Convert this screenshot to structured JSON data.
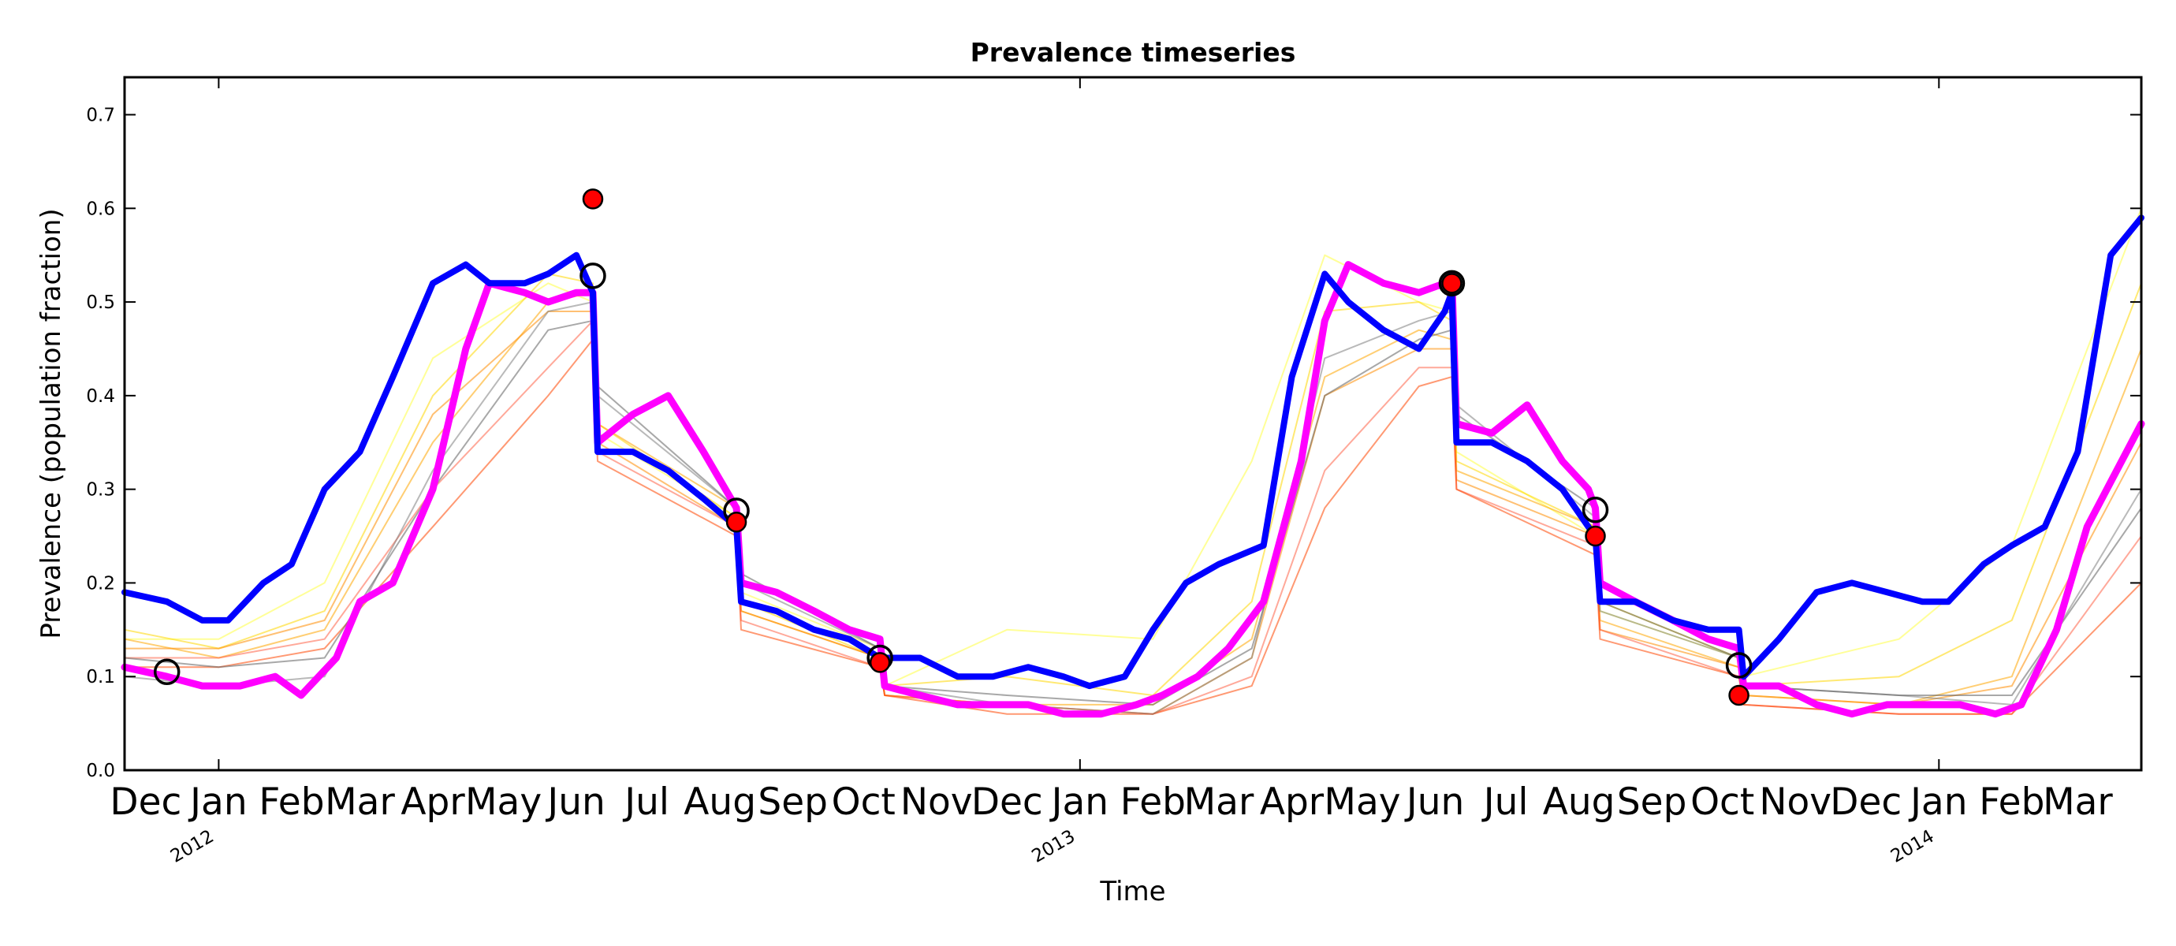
{
  "chart_data": {
    "type": "line",
    "title": "Prevalence timeseries",
    "xlabel": "Time",
    "ylabel": "Prevalence (population fraction)",
    "ylim": [
      0.0,
      0.74
    ],
    "xlim": [
      "2011-11-22",
      "2014-03-28"
    ],
    "y_ticks": [
      "0.0",
      "0.1",
      "0.2",
      "0.3",
      "0.4",
      "0.5",
      "0.6",
      "0.7"
    ],
    "month_ticks": [
      "Dec",
      "Jan",
      "Feb",
      "Mar",
      "Apr",
      "May",
      "Jun",
      "Jul",
      "Aug",
      "Sep",
      "Oct",
      "Nov",
      "Dec",
      "Jan",
      "Feb",
      "Mar",
      "Apr",
      "May",
      "Jun",
      "Jul",
      "Aug",
      "Sep",
      "Oct",
      "Nov",
      "Dec",
      "Jan",
      "Feb",
      "Mar"
    ],
    "year_ticks": [
      "2012",
      "2013",
      "2014"
    ],
    "grid": false,
    "legend": "none",
    "series": [
      {
        "color": "#0000ff",
        "x": [
          "2011-11-22",
          "2011-12-10",
          "2011-12-25",
          "2012-01-05",
          "2012-01-20",
          "2012-02-01",
          "2012-02-15",
          "2012-03-01",
          "2012-03-15",
          "2012-04-01",
          "2012-04-15",
          "2012-04-25",
          "2012-05-10",
          "2012-05-20",
          "2012-06-01",
          "2012-06-08",
          "2012-06-10",
          "2012-06-25",
          "2012-07-10",
          "2012-07-25",
          "2012-08-08",
          "2012-08-10",
          "2012-08-25",
          "2012-09-10",
          "2012-09-25",
          "2012-10-08",
          "2012-10-25",
          "2012-11-10",
          "2012-11-25",
          "2012-12-10",
          "2012-12-25",
          "2013-01-05",
          "2013-01-20",
          "2013-02-01",
          "2013-02-15",
          "2013-03-01",
          "2013-03-20",
          "2013-04-01",
          "2013-04-15",
          "2013-04-25",
          "2013-05-10",
          "2013-05-25",
          "2013-06-05",
          "2013-06-08",
          "2013-06-10",
          "2013-06-25",
          "2013-07-10",
          "2013-07-25",
          "2013-08-05",
          "2013-08-08",
          "2013-08-10",
          "2013-08-25",
          "2013-09-10",
          "2013-09-25",
          "2013-10-08",
          "2013-10-10",
          "2013-10-25",
          "2013-11-10",
          "2013-11-25",
          "2013-12-10",
          "2013-12-25",
          "2014-01-05",
          "2014-01-20",
          "2014-02-01",
          "2014-02-15",
          "2014-03-01",
          "2014-03-15",
          "2014-03-28"
        ],
        "y": [
          0.19,
          0.18,
          0.16,
          0.16,
          0.2,
          0.22,
          0.3,
          0.34,
          0.42,
          0.52,
          0.54,
          0.52,
          0.52,
          0.53,
          0.55,
          0.51,
          0.34,
          0.34,
          0.32,
          0.29,
          0.26,
          0.18,
          0.17,
          0.15,
          0.14,
          0.12,
          0.12,
          0.1,
          0.1,
          0.11,
          0.1,
          0.09,
          0.1,
          0.15,
          0.2,
          0.22,
          0.24,
          0.42,
          0.53,
          0.5,
          0.47,
          0.45,
          0.49,
          0.51,
          0.35,
          0.35,
          0.33,
          0.3,
          0.26,
          0.25,
          0.18,
          0.18,
          0.16,
          0.15,
          0.15,
          0.1,
          0.14,
          0.19,
          0.2,
          0.19,
          0.18,
          0.18,
          0.22,
          0.24,
          0.26,
          0.34,
          0.55,
          0.59
        ]
      },
      {
        "color": "#ff00ff",
        "x": [
          "2011-11-22",
          "2011-12-10",
          "2011-12-25",
          "2012-01-10",
          "2012-01-25",
          "2012-02-05",
          "2012-02-20",
          "2012-03-01",
          "2012-03-15",
          "2012-04-01",
          "2012-04-15",
          "2012-04-25",
          "2012-05-10",
          "2012-05-20",
          "2012-06-01",
          "2012-06-08",
          "2012-06-10",
          "2012-06-25",
          "2012-07-10",
          "2012-07-25",
          "2012-08-08",
          "2012-08-10",
          "2012-08-25",
          "2012-09-10",
          "2012-09-25",
          "2012-10-08",
          "2012-10-10",
          "2012-10-25",
          "2012-11-10",
          "2012-11-25",
          "2012-12-10",
          "2012-12-25",
          "2013-01-10",
          "2013-01-25",
          "2013-02-05",
          "2013-02-20",
          "2013-03-05",
          "2013-03-20",
          "2013-04-05",
          "2013-04-15",
          "2013-04-25",
          "2013-05-10",
          "2013-05-25",
          "2013-06-05",
          "2013-06-08",
          "2013-06-10",
          "2013-06-25",
          "2013-07-10",
          "2013-07-25",
          "2013-08-05",
          "2013-08-08",
          "2013-08-10",
          "2013-08-25",
          "2013-09-10",
          "2013-09-25",
          "2013-10-08",
          "2013-10-10",
          "2013-10-25",
          "2013-11-10",
          "2013-11-25",
          "2013-12-10",
          "2013-12-25",
          "2014-01-10",
          "2014-01-25",
          "2014-02-05",
          "2014-02-20",
          "2014-03-05",
          "2014-03-28"
        ],
        "y": [
          0.11,
          0.1,
          0.09,
          0.09,
          0.1,
          0.08,
          0.12,
          0.18,
          0.2,
          0.3,
          0.45,
          0.52,
          0.51,
          0.5,
          0.51,
          0.51,
          0.35,
          0.38,
          0.4,
          0.34,
          0.28,
          0.2,
          0.19,
          0.17,
          0.15,
          0.14,
          0.09,
          0.08,
          0.07,
          0.07,
          0.07,
          0.06,
          0.06,
          0.07,
          0.08,
          0.1,
          0.13,
          0.18,
          0.33,
          0.48,
          0.54,
          0.52,
          0.51,
          0.52,
          0.53,
          0.37,
          0.36,
          0.39,
          0.33,
          0.3,
          0.28,
          0.2,
          0.18,
          0.16,
          0.14,
          0.13,
          0.09,
          0.09,
          0.07,
          0.06,
          0.07,
          0.07,
          0.07,
          0.06,
          0.07,
          0.15,
          0.26,
          0.37
        ]
      }
    ],
    "ensemble_series": [
      {
        "color": "#ffff44",
        "x": [
          "2011-11-22",
          "2012-01-01",
          "2012-02-15",
          "2012-04-01",
          "2012-05-20",
          "2012-06-08",
          "2012-06-10",
          "2012-08-08",
          "2012-08-10",
          "2012-10-08",
          "2012-10-10",
          "2012-12-01",
          "2013-02-01",
          "2013-03-15",
          "2013-04-15",
          "2013-05-25",
          "2013-06-08",
          "2013-06-10",
          "2013-08-08",
          "2013-08-10",
          "2013-10-08",
          "2013-10-10",
          "2013-12-15",
          "2014-02-01",
          "2014-03-28"
        ],
        "y": [
          0.14,
          0.14,
          0.2,
          0.44,
          0.52,
          0.5,
          0.36,
          0.27,
          0.19,
          0.13,
          0.09,
          0.15,
          0.14,
          0.33,
          0.55,
          0.5,
          0.49,
          0.34,
          0.25,
          0.17,
          0.12,
          0.1,
          0.14,
          0.24,
          0.6
        ]
      },
      {
        "color": "#ffd700",
        "x": [
          "2011-11-22",
          "2012-01-01",
          "2012-02-15",
          "2012-04-01",
          "2012-05-20",
          "2012-06-08",
          "2012-06-10",
          "2012-08-08",
          "2012-08-10",
          "2012-10-08",
          "2012-10-10",
          "2012-12-01",
          "2013-02-01",
          "2013-03-15",
          "2013-04-15",
          "2013-05-25",
          "2013-06-08",
          "2013-06-10",
          "2013-08-08",
          "2013-08-10",
          "2013-10-08",
          "2013-10-10",
          "2013-12-15",
          "2014-02-01",
          "2014-03-28"
        ],
        "y": [
          0.15,
          0.13,
          0.17,
          0.4,
          0.53,
          0.52,
          0.37,
          0.27,
          0.18,
          0.12,
          0.09,
          0.1,
          0.08,
          0.18,
          0.49,
          0.5,
          0.48,
          0.33,
          0.26,
          0.18,
          0.12,
          0.09,
          0.1,
          0.16,
          0.52
        ]
      },
      {
        "color": "#ffa500",
        "x": [
          "2011-11-22",
          "2012-01-01",
          "2012-02-15",
          "2012-04-01",
          "2012-05-20",
          "2012-06-08",
          "2012-06-10",
          "2012-08-08",
          "2012-08-10",
          "2012-10-08",
          "2012-10-10",
          "2012-12-01",
          "2013-02-01",
          "2013-03-15",
          "2013-04-15",
          "2013-05-25",
          "2013-06-08",
          "2013-06-10",
          "2013-08-08",
          "2013-08-10",
          "2013-10-08",
          "2013-10-10",
          "2013-12-15",
          "2014-02-01",
          "2014-03-28"
        ],
        "y": [
          0.14,
          0.12,
          0.15,
          0.35,
          0.5,
          0.51,
          0.37,
          0.28,
          0.17,
          0.12,
          0.08,
          0.07,
          0.07,
          0.14,
          0.42,
          0.47,
          0.46,
          0.32,
          0.26,
          0.16,
          0.11,
          0.08,
          0.07,
          0.1,
          0.45
        ]
      },
      {
        "color": "#ff8c00",
        "x": [
          "2011-11-22",
          "2012-01-01",
          "2012-02-15",
          "2012-04-01",
          "2012-05-20",
          "2012-06-08",
          "2012-06-10",
          "2012-08-08",
          "2012-08-10",
          "2012-10-08",
          "2012-10-10",
          "2012-12-01",
          "2013-02-01",
          "2013-03-15",
          "2013-04-15",
          "2013-05-25",
          "2013-06-08",
          "2013-06-10",
          "2013-08-08",
          "2013-08-10",
          "2013-10-08",
          "2013-10-10",
          "2013-12-15",
          "2014-02-01",
          "2014-03-28"
        ],
        "y": [
          0.13,
          0.13,
          0.16,
          0.38,
          0.49,
          0.49,
          0.35,
          0.26,
          0.17,
          0.12,
          0.08,
          0.07,
          0.06,
          0.12,
          0.4,
          0.45,
          0.45,
          0.31,
          0.25,
          0.15,
          0.11,
          0.08,
          0.07,
          0.09,
          0.35
        ]
      },
      {
        "color": "#ff6347",
        "x": [
          "2011-11-22",
          "2012-01-01",
          "2012-02-15",
          "2012-04-01",
          "2012-05-20",
          "2012-06-08",
          "2012-06-10",
          "2012-08-08",
          "2012-08-10",
          "2012-10-08",
          "2012-10-10",
          "2012-12-01",
          "2013-02-01",
          "2013-03-15",
          "2013-04-15",
          "2013-05-25",
          "2013-06-08",
          "2013-06-10",
          "2013-08-08",
          "2013-08-10",
          "2013-10-08",
          "2013-10-10",
          "2013-12-15",
          "2014-02-01",
          "2014-03-28"
        ],
        "y": [
          0.12,
          0.12,
          0.14,
          0.3,
          0.43,
          0.48,
          0.34,
          0.26,
          0.16,
          0.11,
          0.08,
          0.07,
          0.06,
          0.1,
          0.32,
          0.43,
          0.43,
          0.3,
          0.24,
          0.15,
          0.1,
          0.07,
          0.06,
          0.06,
          0.25
        ]
      },
      {
        "color": "#ff4500",
        "x": [
          "2011-11-22",
          "2012-01-01",
          "2012-02-15",
          "2012-04-01",
          "2012-05-20",
          "2012-06-08",
          "2012-06-10",
          "2012-08-08",
          "2012-08-10",
          "2012-10-08",
          "2012-10-10",
          "2012-12-01",
          "2013-02-01",
          "2013-03-15",
          "2013-04-15",
          "2013-05-25",
          "2013-06-08",
          "2013-06-10",
          "2013-08-08",
          "2013-08-10",
          "2013-10-08",
          "2013-10-10",
          "2013-12-15",
          "2014-02-01",
          "2014-03-28"
        ],
        "y": [
          0.11,
          0.11,
          0.13,
          0.26,
          0.4,
          0.46,
          0.33,
          0.25,
          0.15,
          0.11,
          0.08,
          0.06,
          0.06,
          0.09,
          0.28,
          0.41,
          0.42,
          0.3,
          0.23,
          0.14,
          0.1,
          0.07,
          0.06,
          0.06,
          0.2
        ]
      },
      {
        "color": "#808080",
        "x": [
          "2011-11-22",
          "2012-01-01",
          "2012-02-15",
          "2012-04-01",
          "2012-05-20",
          "2012-06-08",
          "2012-06-10",
          "2012-08-08",
          "2012-08-10",
          "2012-10-08",
          "2012-10-10",
          "2012-12-01",
          "2013-02-01",
          "2013-03-15",
          "2013-04-15",
          "2013-05-25",
          "2013-06-08",
          "2013-06-10",
          "2013-08-08",
          "2013-08-10",
          "2013-10-08",
          "2013-10-10",
          "2013-12-15",
          "2014-02-01",
          "2014-03-28"
        ],
        "y": [
          0.1,
          0.09,
          0.1,
          0.32,
          0.49,
          0.5,
          0.4,
          0.28,
          0.2,
          0.13,
          0.09,
          0.07,
          0.06,
          0.12,
          0.44,
          0.48,
          0.49,
          0.39,
          0.27,
          0.17,
          0.12,
          0.09,
          0.08,
          0.07,
          0.3
        ]
      },
      {
        "color": "#606060",
        "x": [
          "2011-11-22",
          "2012-01-01",
          "2012-02-15",
          "2012-04-01",
          "2012-05-20",
          "2012-06-08",
          "2012-06-10",
          "2012-08-08",
          "2012-08-10",
          "2012-10-08",
          "2012-10-10",
          "2012-12-01",
          "2013-02-01",
          "2013-03-15",
          "2013-04-15",
          "2013-05-25",
          "2013-06-08",
          "2013-06-10",
          "2013-08-08",
          "2013-08-10",
          "2013-10-08",
          "2013-10-10",
          "2013-12-15",
          "2014-02-01",
          "2014-03-28"
        ],
        "y": [
          0.12,
          0.11,
          0.12,
          0.3,
          0.47,
          0.48,
          0.41,
          0.28,
          0.21,
          0.13,
          0.09,
          0.08,
          0.07,
          0.13,
          0.4,
          0.46,
          0.47,
          0.38,
          0.28,
          0.18,
          0.12,
          0.09,
          0.08,
          0.08,
          0.28
        ]
      }
    ],
    "observed_points": {
      "color": "#ff0000",
      "x": [
        "2012-06-08",
        "2012-08-08",
        "2012-10-08",
        "2013-06-08",
        "2013-08-08",
        "2013-10-08"
      ],
      "y": [
        0.61,
        0.265,
        0.115,
        0.52,
        0.25,
        0.08
      ]
    },
    "open_circle_points": {
      "color": "#000000",
      "x": [
        "2011-12-10",
        "2012-06-08",
        "2012-08-08",
        "2012-10-08",
        "2013-06-08",
        "2013-08-08",
        "2013-10-08"
      ],
      "y": [
        0.105,
        0.528,
        0.277,
        0.12,
        0.52,
        0.278,
        0.112
      ]
    }
  }
}
